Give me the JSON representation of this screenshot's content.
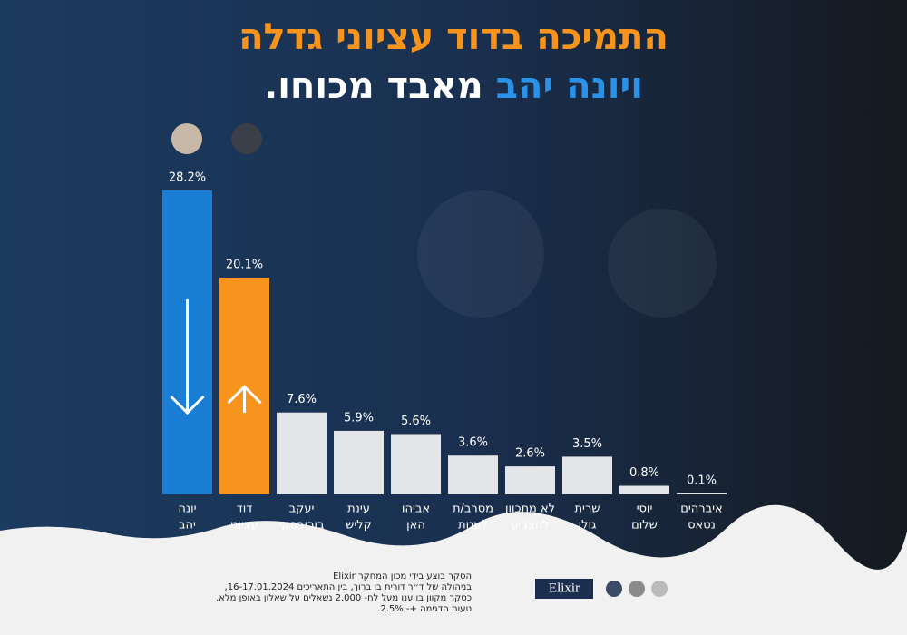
{
  "chart_data": {
    "type": "bar",
    "title_line1": "התמיכה בדוד עציוני גדלה",
    "title_line2": [
      "ויונה יהב",
      "מאבד מכוחו."
    ],
    "categories": [
      [
        "יונה",
        "יהב"
      ],
      [
        "דוד",
        "עציוני"
      ],
      [
        "יעקב",
        "בורובסקי"
      ],
      [
        "עינת",
        "קליש"
      ],
      [
        "אביהו",
        "האן"
      ],
      [
        "מסרב/ת",
        "לענות"
      ],
      [
        "לא מתכוון",
        "להצביע"
      ],
      [
        "שרית",
        "גולן"
      ],
      [
        "יוסי",
        "שלום"
      ],
      [
        "איברהים",
        "נטאס"
      ]
    ],
    "values": [
      28.2,
      20.1,
      7.6,
      5.9,
      5.6,
      3.6,
      2.6,
      3.5,
      0.8,
      0.1
    ],
    "value_labels": [
      "28.2%",
      "20.1%",
      "7.6%",
      "5.9%",
      "5.6%",
      "3.6%",
      "2.6%",
      "3.5%",
      "0.8%",
      "0.1%"
    ],
    "colors": [
      "#1a7fd4",
      "#f7941d",
      "#e4e5e8",
      "#e4e5e8",
      "#e4e5e8",
      "#e4e5e8",
      "#e4e5e8",
      "#e4e5e8",
      "#e4e5e8",
      "#e4e5e8"
    ],
    "footer": [
      "הסקר בוצע בידי מכון המחקר Elixir",
      "בניהולה של ד״ר דורית בן ברוך, בין התאריכים 16-17.01.2024,",
      "כסקר מקוון בו ענו מעל לח- 2,000 נשאלים על שאלון באופן מלא,",
      "טעות הדגימה +- 2.5%."
    ],
    "logo": "Elixir"
  }
}
